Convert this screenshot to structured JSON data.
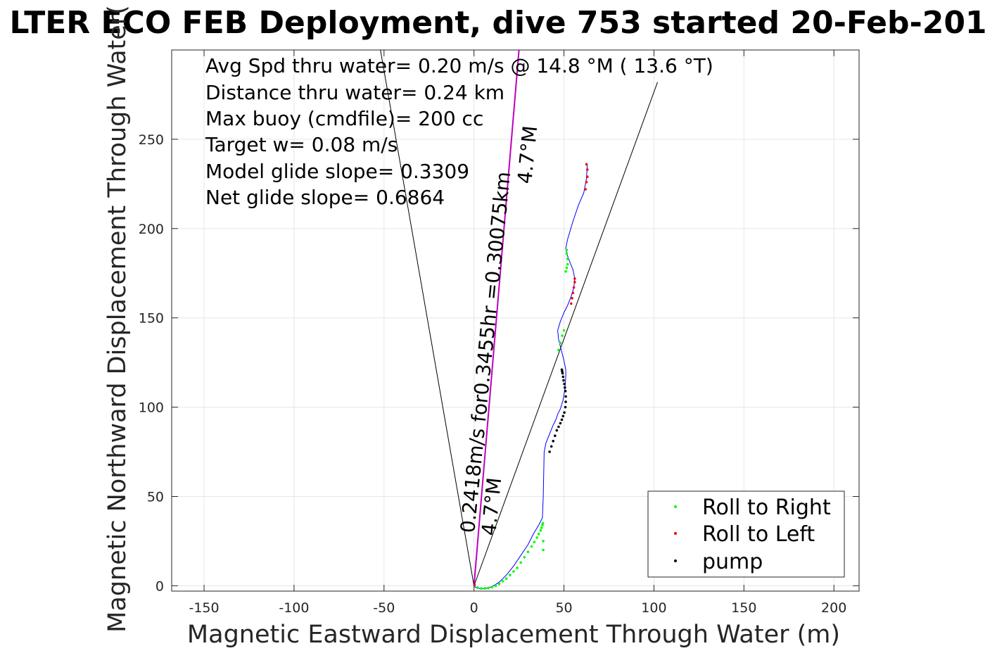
{
  "chart_data": {
    "type": "scatter",
    "title": "LTER ECO FEB Deployment, dive 753 started 20-Feb-201",
    "xlabel": "Magnetic Eastward Displacement Through Water (m)",
    "ylabel": "Magnetic Northward Displacement Through Water(",
    "xlim": [
      -168,
      214
    ],
    "ylim": [
      -3,
      300
    ],
    "xticks": [
      -150,
      -100,
      -50,
      0,
      50,
      100,
      150,
      200
    ],
    "yticks": [
      0,
      50,
      100,
      150,
      200,
      250
    ],
    "grid": true,
    "legend_position": "bottom-right",
    "annotations": [
      "Avg Spd thru water=  0.20 m/s @  14.8 °M ( 13.6 °T)",
      "Distance thru water=  0.24 km",
      "Max buoy (cmdfile)= 200 cc",
      "Target w= 0.08 m/s",
      "Model glide slope= 0.3309",
      "Net glide slope= 0.6864"
    ],
    "rotated_labels": {
      "speed": "0.2418m/s for0.3455hr =0.30075km",
      "heading_start": "4.7°M",
      "heading_end": "4.7°M"
    },
    "reference_lines": [
      {
        "name": "heading-line",
        "x": [
          0,
          25
        ],
        "y": [
          0,
          300
        ],
        "color": "#bf00bf"
      },
      {
        "name": "left-bound",
        "x": [
          0,
          -52
        ],
        "y": [
          0,
          300
        ],
        "color": "#000000"
      },
      {
        "name": "right-bound",
        "x": [
          0,
          102
        ],
        "y": [
          0,
          282
        ],
        "color": "#000000"
      }
    ],
    "track": {
      "color": "#0000ff",
      "x": [
        0,
        1,
        3,
        6,
        10,
        14,
        18,
        22,
        26,
        30,
        33,
        36,
        38,
        38.5,
        39,
        40,
        42,
        44,
        45.5,
        46.5,
        48,
        49.5,
        50.5,
        51,
        51,
        50,
        49,
        48,
        47,
        46.5,
        48,
        50,
        52,
        54,
        55.5,
        56,
        55,
        53,
        51.5,
        51,
        52,
        55,
        58,
        61,
        62.5,
        63
      ],
      "y": [
        0,
        -1,
        -1.5,
        -1.5,
        -0.5,
        2,
        6,
        11,
        17,
        23,
        29,
        34,
        38,
        50,
        75,
        80,
        85,
        90,
        93,
        96,
        99,
        104,
        110,
        117,
        121,
        126,
        130,
        134,
        138,
        143,
        148,
        153,
        157,
        162,
        167,
        172,
        177,
        182,
        186,
        189,
        194,
        204,
        213,
        220,
        228,
        236
      ]
    },
    "series": [
      {
        "name": "Roll to Right",
        "color": "#00ff00",
        "x": [
          2,
          4,
          6,
          8,
          10,
          12,
          14,
          16,
          18,
          20,
          22,
          24,
          26,
          28,
          30,
          32,
          33.5,
          35,
          36,
          37,
          37.5,
          38,
          38.3,
          38.5,
          38.5,
          47,
          48,
          49,
          50,
          51,
          51.5,
          52,
          52,
          51.5,
          51.5
        ],
        "y": [
          -1,
          -1.5,
          -1.5,
          -1.3,
          -0.8,
          0,
          1,
          2.5,
          4,
          6,
          8,
          10,
          13,
          16,
          19,
          22,
          24.5,
          27,
          29,
          31,
          32.5,
          34,
          35,
          20,
          25,
          132,
          136,
          140,
          143,
          176,
          178,
          180,
          183,
          186,
          188
        ]
      },
      {
        "name": "Roll to Left",
        "color": "#ff0000",
        "x": [
          0.3,
          54,
          54.5,
          55,
          55.5,
          56,
          56,
          62,
          62.5,
          63,
          63,
          62.5
        ],
        "y": [
          0.5,
          158,
          161,
          164,
          167,
          170,
          172,
          222,
          226,
          229,
          233,
          236
        ]
      },
      {
        "name": "pump",
        "color": "#000000",
        "x": [
          42,
          43,
          44,
          45,
          46,
          47,
          48,
          48.8,
          49.5,
          50.2,
          50.8,
          51,
          51,
          50.8,
          50.5,
          50.2,
          49.8,
          49.5,
          49.2,
          49,
          48.8
        ],
        "y": [
          75,
          78,
          81,
          84,
          87,
          89,
          91,
          93,
          95,
          97,
          100,
          103,
          106,
          109,
          111,
          113,
          115,
          117,
          119,
          120,
          121
        ]
      }
    ]
  }
}
